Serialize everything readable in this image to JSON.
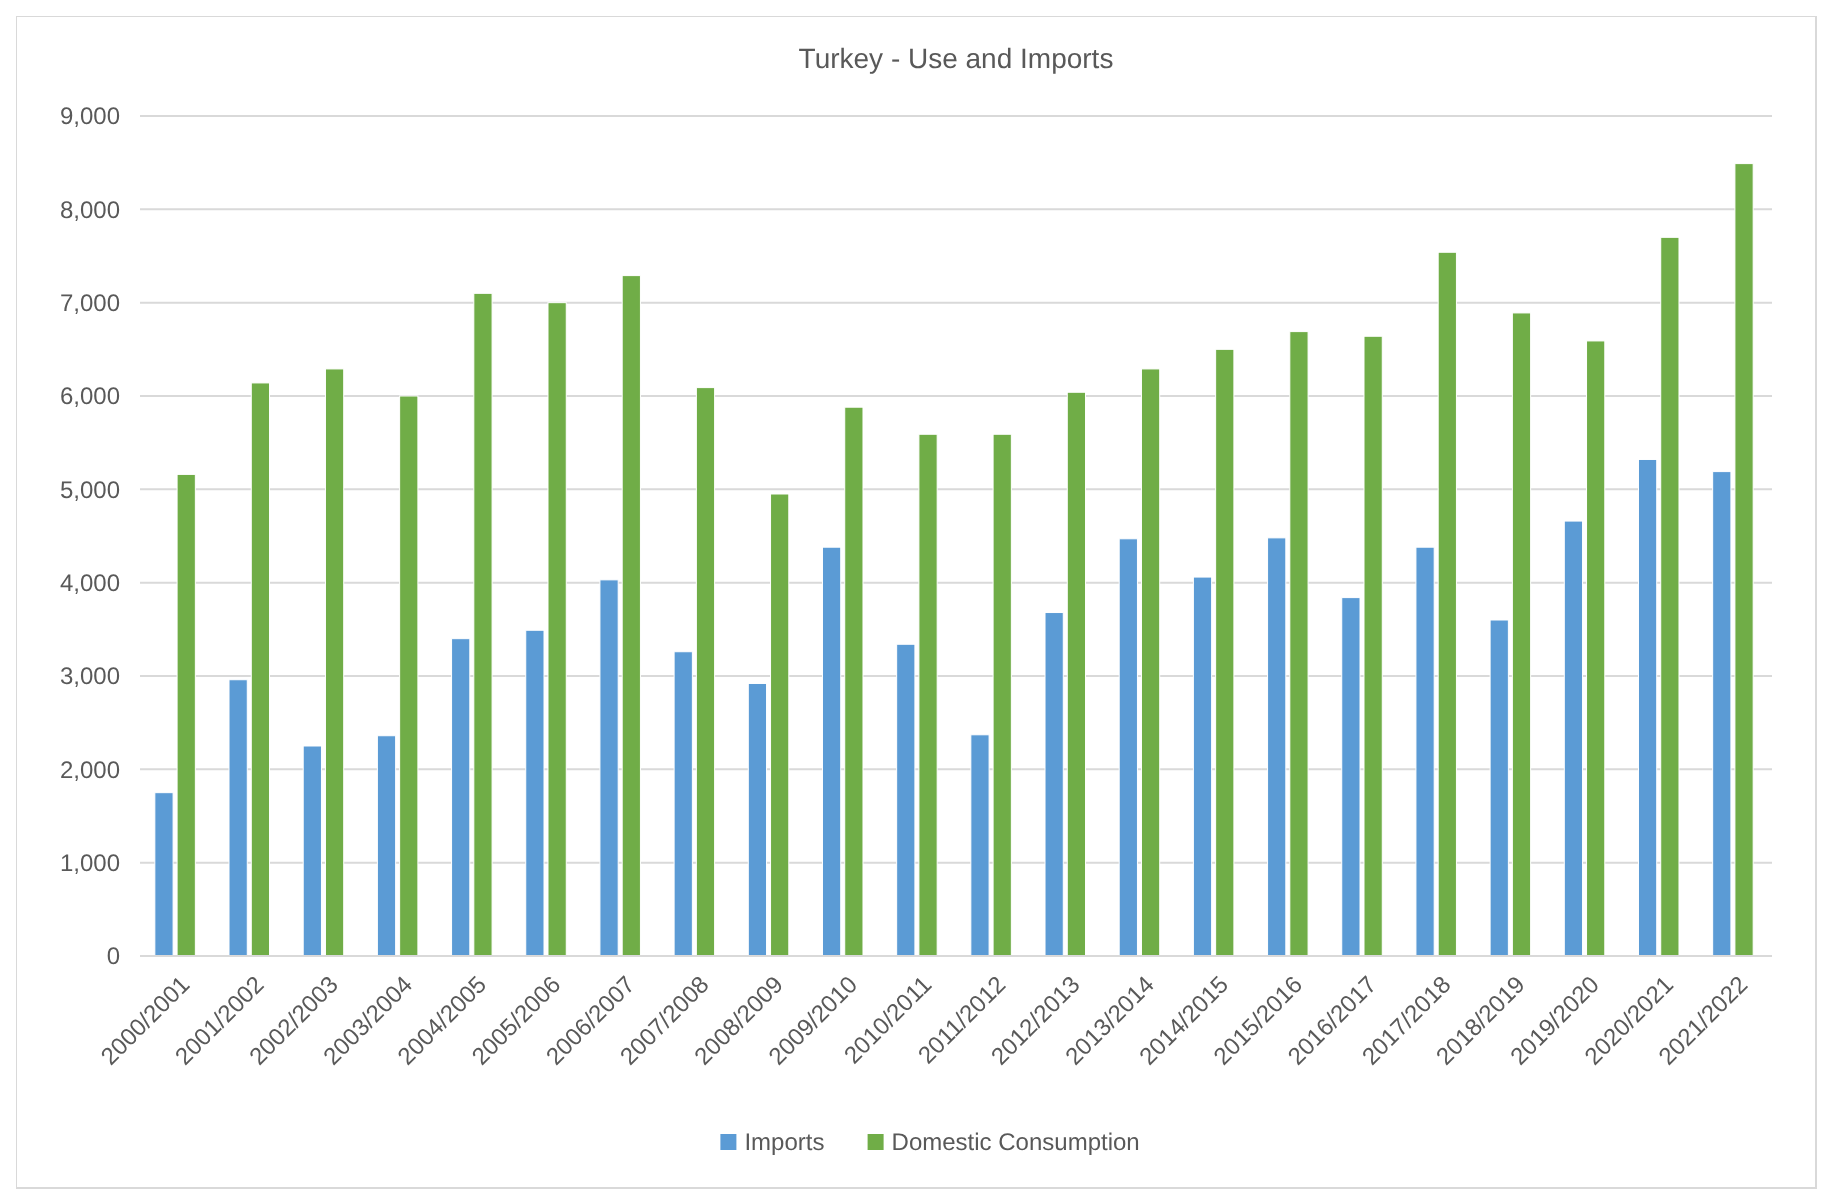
{
  "chart_data": {
    "type": "bar",
    "title": "Turkey - Use and Imports",
    "categories": [
      "2000/2001",
      "2001/2002",
      "2002/2003",
      "2003/2004",
      "2004/2005",
      "2005/2006",
      "2006/2007",
      "2007/2008",
      "2008/2009",
      "2009/2010",
      "2010/2011",
      "2011/2012",
      "2012/2013",
      "2013/2014",
      "2014/2015",
      "2015/2016",
      "2016/2017",
      "2017/2018",
      "2018/2019",
      "2019/2020",
      "2020/2021",
      "2021/2022"
    ],
    "series": [
      {
        "name": "Imports",
        "color": "#5b9bd5",
        "values": [
          1750,
          2960,
          2250,
          2360,
          3400,
          3490,
          4030,
          3260,
          2920,
          4380,
          3340,
          2370,
          3680,
          4470,
          4060,
          4480,
          3840,
          4380,
          3600,
          4660,
          5320,
          5190
        ]
      },
      {
        "name": "Domestic Consumption",
        "color": "#70ad47",
        "values": [
          5160,
          6140,
          6290,
          6000,
          7100,
          7000,
          7290,
          6090,
          4950,
          5880,
          5590,
          5590,
          6040,
          6290,
          6500,
          6690,
          6640,
          7540,
          6890,
          6590,
          7700,
          8490
        ]
      }
    ],
    "ylim": [
      0,
      9000
    ],
    "yticks": [
      {
        "value": 0,
        "label": "0"
      },
      {
        "value": 1000,
        "label": "1,000"
      },
      {
        "value": 2000,
        "label": "2,000"
      },
      {
        "value": 3000,
        "label": "3,000"
      },
      {
        "value": 4000,
        "label": "4,000"
      },
      {
        "value": 5000,
        "label": "5,000"
      },
      {
        "value": 6000,
        "label": "6,000"
      },
      {
        "value": 7000,
        "label": "7,000"
      },
      {
        "value": 8000,
        "label": "8,000"
      },
      {
        "value": 9000,
        "label": "9,000"
      }
    ],
    "grid": "y",
    "legend": "bottom"
  }
}
